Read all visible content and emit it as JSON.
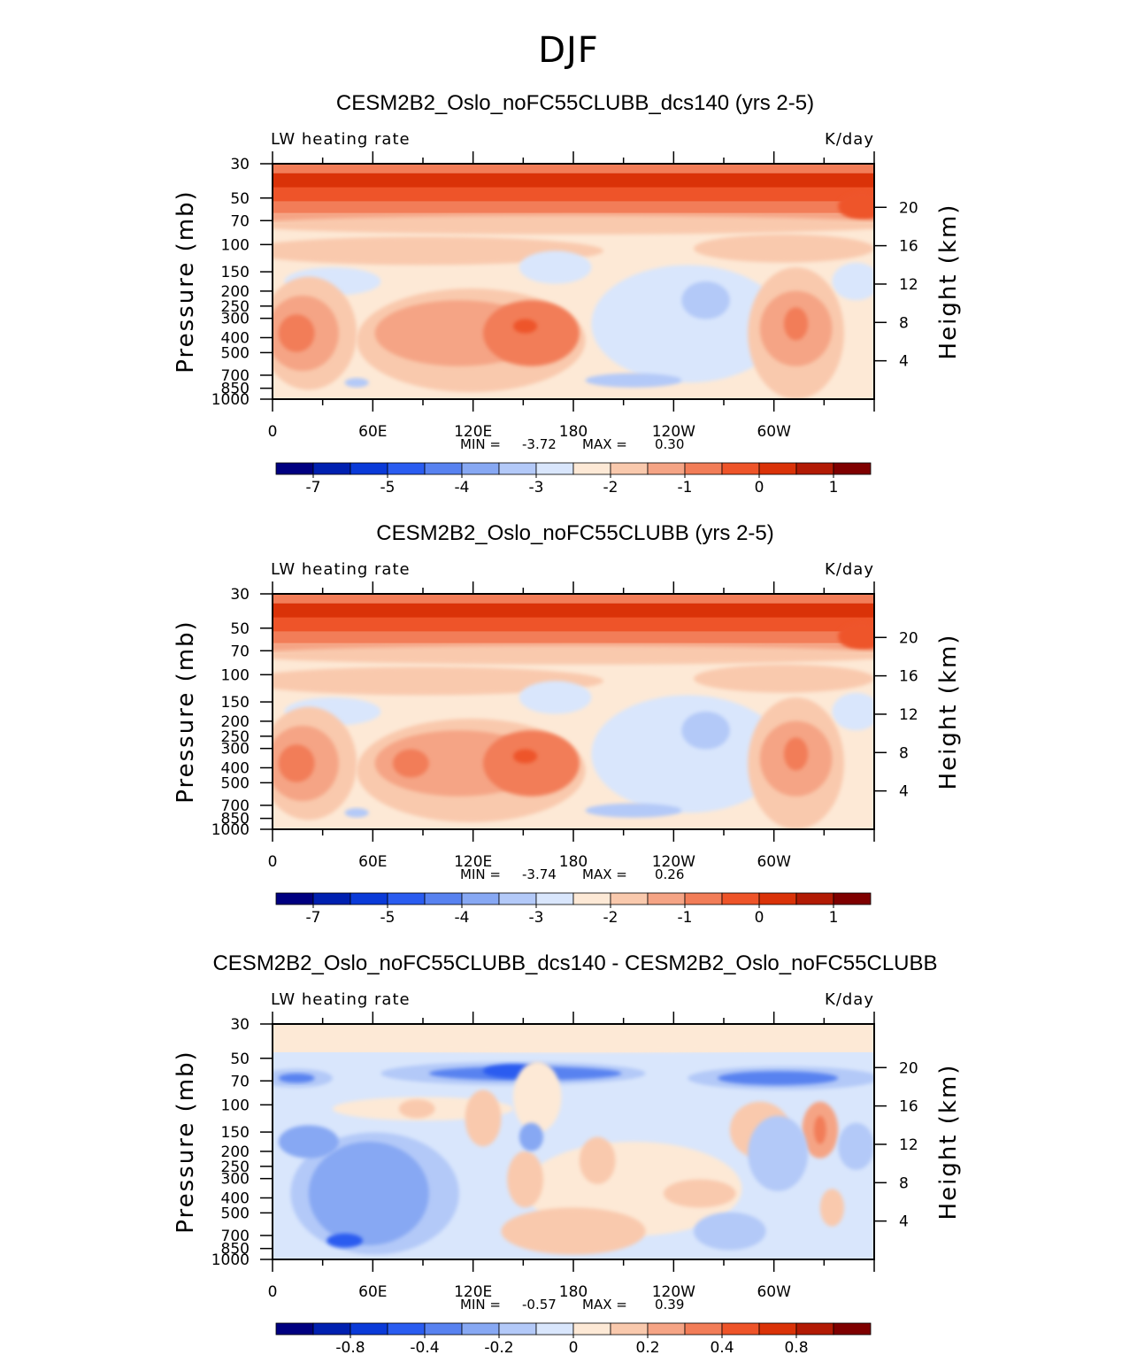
{
  "figure_title": "DJF",
  "chart_data": [
    {
      "type": "contour",
      "title": "CESM2B2_Oslo_noFC55CLUBB_dcs140 (yrs 2-5)",
      "left_label": "LW heating rate",
      "right_label": "K/day",
      "ylabel": "Pressure (mb)",
      "ylabel_right": "Height (km)",
      "x_ticks": [
        "0",
        "60E",
        "120E",
        "180",
        "120W",
        "60W"
      ],
      "y_ticks": [
        "30",
        "50",
        "70",
        "100",
        "150",
        "200",
        "250",
        "300",
        "400",
        "500",
        "700",
        "850",
        "1000"
      ],
      "height_ticks": [
        "20",
        "16",
        "12",
        "8",
        "4"
      ],
      "stats": {
        "min_label": "MIN =",
        "min": "-3.72",
        "max_label": "MAX =",
        "max": "0.30"
      },
      "colorbar_labels": [
        "-7",
        "-5",
        "-4",
        "-3",
        "-2",
        "-1",
        "0",
        "1"
      ],
      "ylim": [
        1000,
        30
      ],
      "xlim": [
        0,
        360
      ]
    },
    {
      "type": "contour",
      "title": "CESM2B2_Oslo_noFC55CLUBB (yrs 2-5)",
      "left_label": "LW heating rate",
      "right_label": "K/day",
      "ylabel": "Pressure (mb)",
      "ylabel_right": "Height (km)",
      "x_ticks": [
        "0",
        "60E",
        "120E",
        "180",
        "120W",
        "60W"
      ],
      "y_ticks": [
        "30",
        "50",
        "70",
        "100",
        "150",
        "200",
        "250",
        "300",
        "400",
        "500",
        "700",
        "850",
        "1000"
      ],
      "height_ticks": [
        "20",
        "16",
        "12",
        "8",
        "4"
      ],
      "stats": {
        "min_label": "MIN =",
        "min": "-3.74",
        "max_label": "MAX =",
        "max": "0.26"
      },
      "colorbar_labels": [
        "-7",
        "-5",
        "-4",
        "-3",
        "-2",
        "-1",
        "0",
        "1"
      ],
      "ylim": [
        1000,
        30
      ],
      "xlim": [
        0,
        360
      ]
    },
    {
      "type": "contour",
      "title": "CESM2B2_Oslo_noFC55CLUBB_dcs140 - CESM2B2_Oslo_noFC55CLUBB",
      "left_label": "LW heating rate",
      "right_label": "K/day",
      "ylabel": "Pressure (mb)",
      "ylabel_right": "Height (km)",
      "x_ticks": [
        "0",
        "60E",
        "120E",
        "180",
        "120W",
        "60W"
      ],
      "y_ticks": [
        "30",
        "50",
        "70",
        "100",
        "150",
        "200",
        "250",
        "300",
        "400",
        "500",
        "700",
        "850",
        "1000"
      ],
      "height_ticks": [
        "20",
        "16",
        "12",
        "8",
        "4"
      ],
      "stats": {
        "min_label": "MIN =",
        "min": "-0.57",
        "max_label": "MAX =",
        "max": "0.39"
      },
      "colorbar_labels": [
        "-0.8",
        "-0.4",
        "-0.2",
        "0",
        "0.2",
        "0.4",
        "0.8"
      ],
      "ylim": [
        1000,
        30
      ],
      "xlim": [
        0,
        360
      ]
    }
  ],
  "colors": {
    "scale": [
      "#000080",
      "#0020b0",
      "#0a3ad8",
      "#2a5cf0",
      "#5882f0",
      "#87a8f3",
      "#b3c9f8",
      "#d9e6fc",
      "#fde9d6",
      "#f9c9ad",
      "#f5a485",
      "#f27d58",
      "#ee5429",
      "#da3208",
      "#b21a04",
      "#7f0000"
    ]
  }
}
